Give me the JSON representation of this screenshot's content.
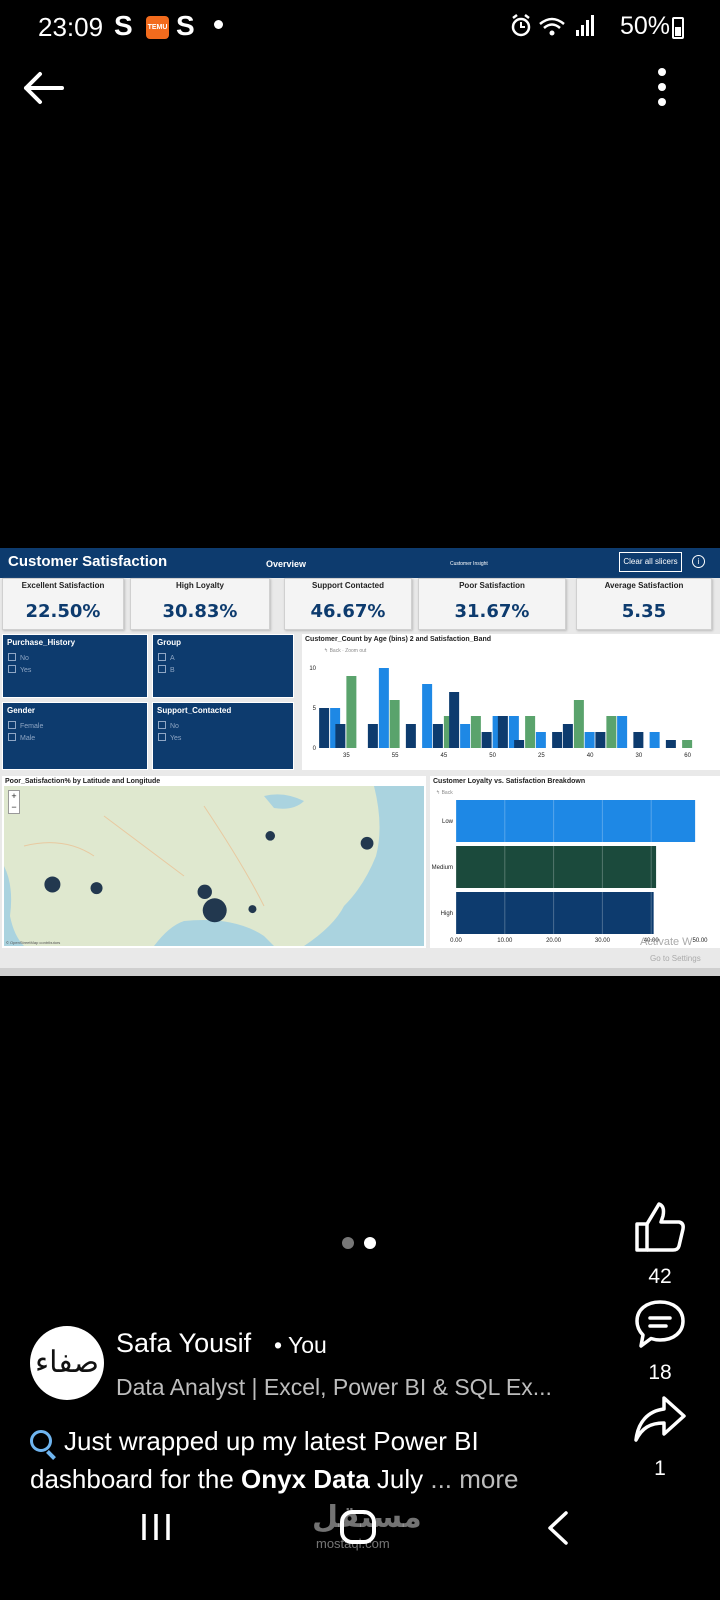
{
  "status_bar": {
    "time": "23:09",
    "s1": "S",
    "temu": "TEMU",
    "s2": "S",
    "battery": "50%"
  },
  "dashboard": {
    "title": "Customer Satisfaction",
    "tab_overview": "Overview",
    "tab_insight": "Customer Insight",
    "clear_button": "Clear all slicers",
    "info": "i",
    "kpis": [
      {
        "label": "Excellent Satisfaction",
        "value": "22.50%"
      },
      {
        "label": "High Loyalty",
        "value": "30.83%"
      },
      {
        "label": "Support Contacted",
        "value": "46.67%"
      },
      {
        "label": "Poor Satisfaction",
        "value": "31.67%"
      },
      {
        "label": "Average Satisfaction",
        "value": "5.35"
      }
    ],
    "slicers": {
      "purchase_history": {
        "title": "Purchase_History",
        "options": [
          "No",
          "Yes"
        ]
      },
      "group": {
        "title": "Group",
        "options": [
          "A",
          "B"
        ]
      },
      "gender": {
        "title": "Gender",
        "options": [
          "Female",
          "Male"
        ]
      },
      "support": {
        "title": "Support_Contacted",
        "options": [
          "No",
          "Yes"
        ]
      }
    },
    "age_chart_title": "Customer_Count by Age (bins) 2 and Satisfaction_Band",
    "map_title": "Poor_Satisfaction% by Latitude and Longitude",
    "map_attrib": "© OpenStreetMap contributors",
    "map_zoom_in": "+",
    "map_zoom_out": "−",
    "loyalty_title": "Customer Loyalty vs. Satisfaction Breakdown",
    "tools_back": "Back",
    "tools_zoom": "Zoom out",
    "watermark_1": "Activate W",
    "watermark_2": "Go to Settings"
  },
  "chart_data": [
    {
      "type": "bar",
      "title": "Customer_Count by Age (bins) 2 and Satisfaction_Band",
      "categories": [
        "",
        "35",
        "",
        "",
        "55",
        "",
        "",
        "45",
        "",
        "",
        "50",
        "",
        "",
        "25",
        "",
        "",
        "40",
        "",
        "",
        "30",
        "",
        "",
        "60",
        ""
      ],
      "series": [
        {
          "color": "#0d3b6e",
          "values": [
            5,
            3,
            0,
            3,
            0,
            3,
            0,
            3,
            7,
            0,
            2,
            4,
            1,
            0,
            2,
            3,
            0,
            2,
            0,
            2,
            0,
            1,
            0,
            0
          ]
        },
        {
          "color": "#1e88e5",
          "values": [
            5,
            0,
            0,
            10,
            0,
            0,
            8,
            0,
            3,
            0,
            4,
            4,
            0,
            2,
            0,
            0,
            2,
            0,
            4,
            0,
            2,
            0,
            0,
            0
          ]
        },
        {
          "color": "#5aa36c",
          "values": [
            0,
            9,
            0,
            0,
            6,
            0,
            0,
            4,
            0,
            4,
            0,
            0,
            4,
            0,
            0,
            6,
            0,
            4,
            0,
            0,
            0,
            0,
            1,
            0
          ]
        }
      ],
      "ylim": [
        0,
        10
      ],
      "yticks": [
        0,
        5,
        10
      ]
    },
    {
      "type": "bar",
      "orientation": "horizontal",
      "title": "Customer Loyalty vs. Satisfaction Breakdown",
      "categories": [
        "Low",
        "Medium",
        "High"
      ],
      "values": [
        49,
        41,
        40.5
      ],
      "colors": [
        "#1e88e5",
        "#1b4a3c",
        "#0d3b6e"
      ],
      "xlim": [
        0,
        50
      ],
      "xticks": [
        "0.00",
        "10.00",
        "20.00",
        "30.00",
        "40.00",
        "50.00"
      ]
    },
    {
      "type": "scatter",
      "title": "Poor_Satisfaction% by Latitude and Longitude",
      "points": [
        {
          "lon": -118.2,
          "lat": 34.0,
          "size": 2
        },
        {
          "lon": -112.0,
          "lat": 33.4,
          "size": 1.5
        },
        {
          "lon": -95.4,
          "lat": 29.8,
          "size": 3
        },
        {
          "lon": -96.8,
          "lat": 32.8,
          "size": 1.8
        },
        {
          "lon": -90.1,
          "lat": 30.0,
          "size": 1
        },
        {
          "lon": -87.6,
          "lat": 41.9,
          "size": 1.2
        },
        {
          "lon": -74.0,
          "lat": 40.7,
          "size": 1.6
        }
      ]
    }
  ],
  "post": {
    "likes": "42",
    "comments": "18",
    "shares": "1",
    "author_name": "Safa Yousif",
    "author_you": "• You",
    "author_headline": "Data Analyst | Excel, Power BI & SQL Ex...",
    "avatar_text": "صفاء",
    "caption_1": "Just wrapped up my latest Power BI dashboard for the ",
    "caption_bold": "Onyx Data",
    "caption_2": " July",
    "caption_more": " ... more"
  },
  "nav": {
    "watermark": "مستقل",
    "watermark_sub": "mostaql.com"
  }
}
